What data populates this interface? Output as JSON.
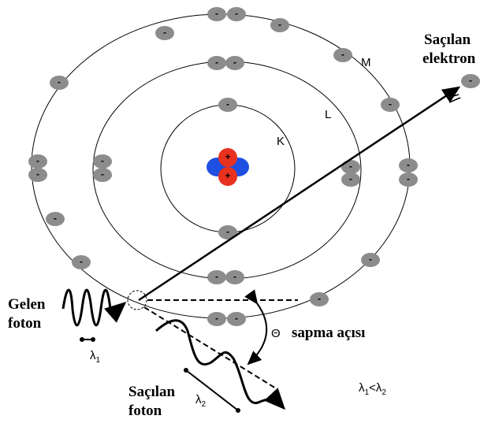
{
  "labels": {
    "scattered_electron": [
      "Saçılan",
      "elektron"
    ],
    "shell_m": "M",
    "shell_l": "L",
    "shell_k": "K",
    "incoming_photon": [
      "Gelen",
      "foton"
    ],
    "angle_symbol": "Θ",
    "angle_name": "sapma açısı",
    "scattered_photon": [
      "Saçılan",
      "foton"
    ],
    "wavelength_in": {
      "symbol": "λ",
      "subscript": "1"
    },
    "wavelength_out": {
      "symbol": "λ",
      "subscript": "2"
    },
    "relation": {
      "left": "λ",
      "left_sub": "1",
      "op": "<",
      "right": "λ",
      "right_sub": "2"
    }
  },
  "electron_charge": "-",
  "proton_charge": "+"
}
